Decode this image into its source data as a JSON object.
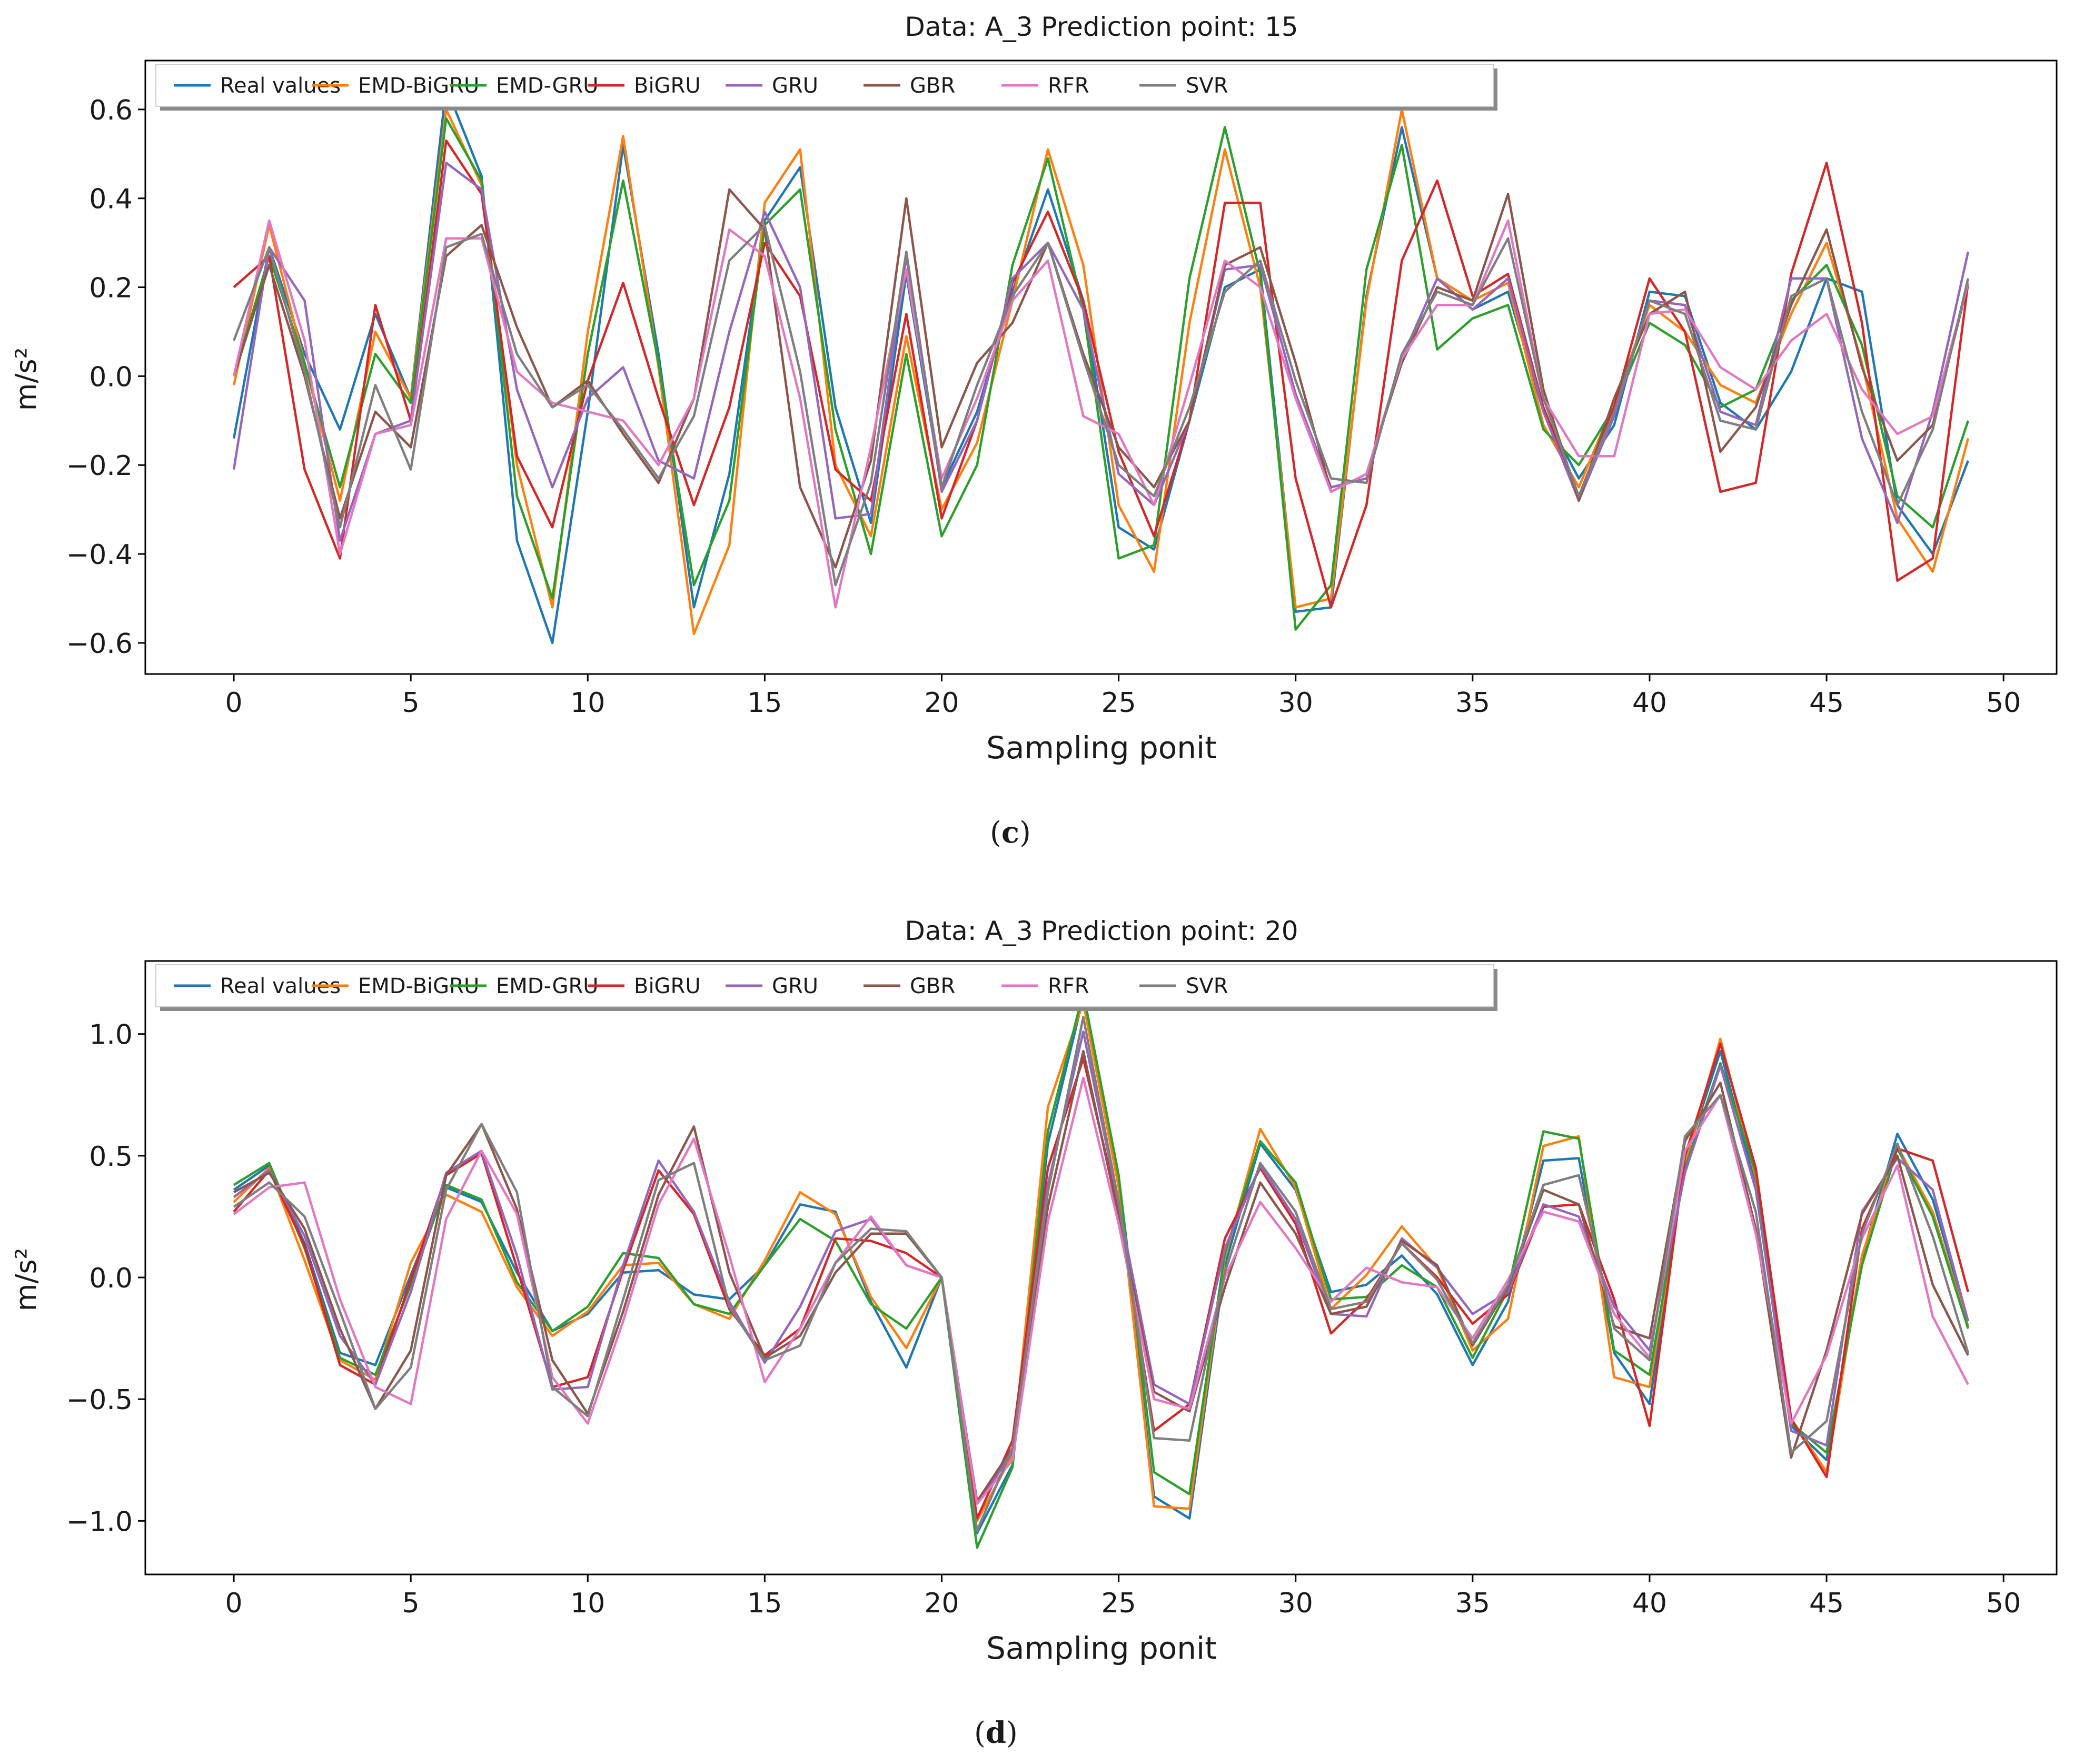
{
  "chart_data": [
    {
      "type": "line",
      "title": "Data: A_3 Prediction point: 15",
      "xlabel": "Sampling ponit",
      "ylabel": "m/s²",
      "caption_letter": "c",
      "xlim": [
        -2.5,
        51.5
      ],
      "ylim": [
        -0.67,
        0.71
      ],
      "xticks": [
        0,
        5,
        10,
        15,
        20,
        25,
        30,
        35,
        40,
        45,
        50
      ],
      "xtick_labels": [
        "0",
        "5",
        "10",
        "15",
        "20",
        "25",
        "30",
        "35",
        "40",
        "45",
        "50"
      ],
      "yticks": [
        -0.6,
        -0.4,
        -0.2,
        0.0,
        0.2,
        0.4,
        0.6
      ],
      "ytick_labels": [
        "−0.6",
        "−0.4",
        "−0.2",
        "0.0",
        "0.2",
        "0.4",
        "0.6"
      ],
      "legend_position": "top-left",
      "x": [
        0,
        1,
        2,
        3,
        4,
        5,
        6,
        7,
        8,
        9,
        10,
        11,
        12,
        13,
        14,
        15,
        16,
        17,
        18,
        19,
        20,
        21,
        22,
        23,
        24,
        25,
        26,
        27,
        28,
        29,
        30,
        31,
        32,
        33,
        34,
        35,
        36,
        37,
        38,
        39,
        40,
        41,
        42,
        43,
        44,
        45,
        46,
        47,
        48,
        49
      ],
      "series": [
        {
          "name": "Real values",
          "color": "#1f77b4",
          "values": [
            -0.14,
            0.29,
            0.05,
            -0.12,
            0.14,
            -0.05,
            0.65,
            0.45,
            -0.37,
            -0.6,
            -0.08,
            0.52,
            0.05,
            -0.52,
            -0.22,
            0.35,
            0.47,
            -0.07,
            -0.33,
            0.23,
            -0.25,
            -0.08,
            0.19,
            0.42,
            0.17,
            -0.34,
            -0.39,
            -0.1,
            0.2,
            0.24,
            -0.53,
            -0.52,
            0.18,
            0.56,
            0.22,
            0.15,
            0.19,
            -0.08,
            -0.23,
            -0.11,
            0.19,
            0.18,
            -0.06,
            -0.12,
            0.01,
            0.22,
            0.19,
            -0.29,
            -0.4,
            -0.19
          ]
        },
        {
          "name": "EMD-BiGRU",
          "color": "#ff7f0e",
          "values": [
            -0.02,
            0.34,
            0.03,
            -0.28,
            0.1,
            -0.05,
            0.6,
            0.43,
            -0.2,
            -0.52,
            0.1,
            0.54,
            0.02,
            -0.58,
            -0.38,
            0.39,
            0.51,
            -0.2,
            -0.36,
            0.09,
            -0.3,
            -0.15,
            0.17,
            0.51,
            0.25,
            -0.29,
            -0.44,
            0.12,
            0.51,
            0.2,
            -0.52,
            -0.5,
            0.17,
            0.6,
            0.22,
            0.17,
            0.21,
            -0.11,
            -0.25,
            -0.06,
            0.16,
            0.1,
            -0.02,
            -0.06,
            0.14,
            0.3,
            0.03,
            -0.32,
            -0.44,
            -0.14
          ]
        },
        {
          "name": "EMD-GRU",
          "color": "#2ca02c",
          "values": [
            0.0,
            0.27,
            0.03,
            -0.25,
            0.05,
            -0.06,
            0.58,
            0.44,
            -0.27,
            -0.5,
            0.05,
            0.44,
            0.03,
            -0.47,
            -0.28,
            0.34,
            0.42,
            -0.12,
            -0.4,
            0.05,
            -0.36,
            -0.2,
            0.25,
            0.49,
            0.15,
            -0.41,
            -0.38,
            0.22,
            0.56,
            0.23,
            -0.57,
            -0.47,
            0.24,
            0.52,
            0.06,
            0.13,
            0.16,
            -0.12,
            -0.2,
            -0.07,
            0.12,
            0.07,
            -0.07,
            -0.03,
            0.17,
            0.25,
            0.07,
            -0.27,
            -0.34,
            -0.1
          ]
        },
        {
          "name": "BiGRU",
          "color": "#d62728",
          "values": [
            0.2,
            0.27,
            -0.21,
            -0.41,
            0.16,
            -0.1,
            0.53,
            0.41,
            -0.18,
            -0.34,
            -0.01,
            0.21,
            -0.05,
            -0.29,
            -0.07,
            0.3,
            0.18,
            -0.21,
            -0.28,
            0.14,
            -0.32,
            -0.1,
            0.21,
            0.37,
            0.17,
            -0.17,
            -0.36,
            -0.1,
            0.39,
            0.39,
            -0.23,
            -0.52,
            -0.29,
            0.26,
            0.44,
            0.18,
            0.23,
            -0.07,
            -0.27,
            -0.07,
            0.22,
            0.1,
            -0.26,
            -0.24,
            0.23,
            0.48,
            0.12,
            -0.46,
            -0.41,
            0.21
          ]
        },
        {
          "name": "GRU",
          "color": "#9467bd",
          "values": [
            -0.21,
            0.29,
            0.17,
            -0.37,
            -0.13,
            -0.1,
            0.48,
            0.42,
            -0.03,
            -0.25,
            -0.05,
            0.02,
            -0.19,
            -0.23,
            0.1,
            0.37,
            0.2,
            -0.32,
            -0.31,
            0.27,
            -0.26,
            -0.1,
            0.22,
            0.3,
            0.15,
            -0.22,
            -0.29,
            -0.1,
            0.24,
            0.25,
            -0.04,
            -0.25,
            -0.23,
            0.04,
            0.22,
            0.15,
            0.22,
            -0.08,
            -0.28,
            -0.09,
            0.17,
            0.16,
            -0.08,
            -0.11,
            0.22,
            0.22,
            -0.14,
            -0.33,
            -0.08,
            0.28
          ]
        },
        {
          "name": "GBR",
          "color": "#8c564b",
          "values": [
            0.0,
            0.25,
            0.0,
            -0.32,
            -0.08,
            -0.16,
            0.27,
            0.34,
            0.11,
            -0.07,
            -0.01,
            -0.13,
            -0.24,
            -0.05,
            0.42,
            0.33,
            -0.25,
            -0.43,
            -0.19,
            0.4,
            -0.16,
            0.03,
            0.12,
            0.3,
            0.05,
            -0.16,
            -0.25,
            -0.1,
            0.25,
            0.29,
            0.03,
            -0.26,
            -0.22,
            0.03,
            0.2,
            0.17,
            0.41,
            -0.03,
            -0.28,
            -0.05,
            0.14,
            0.19,
            -0.17,
            -0.07,
            0.16,
            0.33,
            0.02,
            -0.19,
            -0.11,
            0.21
          ]
        },
        {
          "name": "RFR",
          "color": "#e377c2",
          "values": [
            0.0,
            0.35,
            0.08,
            -0.4,
            -0.13,
            -0.11,
            0.31,
            0.31,
            0.01,
            -0.06,
            -0.08,
            -0.1,
            -0.2,
            -0.05,
            0.33,
            0.27,
            -0.05,
            -0.52,
            -0.16,
            0.24,
            -0.23,
            -0.05,
            0.17,
            0.26,
            -0.09,
            -0.13,
            -0.29,
            -0.02,
            0.26,
            0.2,
            -0.05,
            -0.26,
            -0.22,
            0.04,
            0.16,
            0.16,
            0.35,
            -0.05,
            -0.18,
            -0.18,
            0.14,
            0.15,
            0.02,
            -0.03,
            0.08,
            0.14,
            -0.03,
            -0.13,
            -0.09,
            0.21
          ]
        },
        {
          "name": "SVR",
          "color": "#7f7f7f",
          "values": [
            0.08,
            0.29,
            0.01,
            -0.34,
            -0.02,
            -0.21,
            0.29,
            0.32,
            0.05,
            -0.07,
            -0.02,
            -0.12,
            -0.23,
            -0.09,
            0.26,
            0.34,
            0.01,
            -0.47,
            -0.24,
            0.28,
            -0.25,
            -0.02,
            0.18,
            0.3,
            0.04,
            -0.2,
            -0.27,
            -0.07,
            0.19,
            0.26,
            -0.01,
            -0.23,
            -0.24,
            0.05,
            0.19,
            0.16,
            0.31,
            -0.05,
            -0.27,
            -0.08,
            0.17,
            0.14,
            -0.1,
            -0.12,
            0.18,
            0.22,
            -0.08,
            -0.29,
            -0.12,
            0.22
          ]
        }
      ]
    },
    {
      "type": "line",
      "title": "Data: A_3 Prediction point: 20",
      "xlabel": "Sampling ponit",
      "ylabel": "m/s²",
      "caption_letter": "d",
      "xlim": [
        -2.5,
        51.5
      ],
      "ylim": [
        -1.22,
        1.3
      ],
      "xticks": [
        0,
        5,
        10,
        15,
        20,
        25,
        30,
        35,
        40,
        45,
        50
      ],
      "xtick_labels": [
        "0",
        "5",
        "10",
        "15",
        "20",
        "25",
        "30",
        "35",
        "40",
        "45",
        "50"
      ],
      "yticks": [
        -1.0,
        -0.5,
        0.0,
        0.5,
        1.0
      ],
      "ytick_labels": [
        "−1.0",
        "−0.5",
        "0.0",
        "0.5",
        "1.0"
      ],
      "legend_position": "top-left",
      "x": [
        0,
        1,
        2,
        3,
        4,
        5,
        6,
        7,
        8,
        9,
        10,
        11,
        12,
        13,
        14,
        15,
        16,
        17,
        18,
        19,
        20,
        21,
        22,
        23,
        24,
        25,
        26,
        27,
        28,
        29,
        30,
        31,
        32,
        33,
        34,
        35,
        36,
        37,
        38,
        39,
        40,
        41,
        42,
        43,
        44,
        45,
        46,
        47,
        48,
        49
      ],
      "series": [
        {
          "name": "Real values",
          "color": "#1f77b4",
          "values": [
            0.36,
            0.46,
            0.14,
            -0.31,
            -0.36,
            0.01,
            0.37,
            0.31,
            0.02,
            -0.22,
            -0.15,
            0.02,
            0.03,
            -0.07,
            -0.09,
            0.05,
            0.3,
            0.27,
            -0.1,
            -0.37,
            0.0,
            -1.05,
            -0.77,
            0.55,
            1.15,
            0.38,
            -0.9,
            -0.99,
            0.05,
            0.55,
            0.36,
            -0.06,
            -0.03,
            0.09,
            -0.07,
            -0.36,
            -0.1,
            0.48,
            0.49,
            -0.31,
            -0.52,
            0.48,
            0.93,
            0.38,
            -0.61,
            -0.75,
            0.08,
            0.59,
            0.32,
            -0.18
          ]
        },
        {
          "name": "EMD-BiGRU",
          "color": "#ff7f0e",
          "values": [
            0.31,
            0.45,
            0.07,
            -0.34,
            -0.42,
            0.06,
            0.34,
            0.27,
            -0.04,
            -0.24,
            -0.14,
            0.05,
            0.06,
            -0.11,
            -0.17,
            0.07,
            0.35,
            0.26,
            -0.08,
            -0.29,
            0.0,
            -1.0,
            -0.73,
            0.7,
            1.13,
            0.37,
            -0.94,
            -0.95,
            0.08,
            0.61,
            0.37,
            -0.13,
            0.01,
            0.21,
            0.04,
            -0.3,
            -0.17,
            0.54,
            0.58,
            -0.41,
            -0.45,
            0.47,
            0.98,
            0.41,
            -0.58,
            -0.8,
            0.09,
            0.54,
            0.27,
            -0.2
          ]
        },
        {
          "name": "EMD-GRU",
          "color": "#2ca02c",
          "values": [
            0.38,
            0.47,
            0.12,
            -0.33,
            -0.4,
            -0.03,
            0.38,
            0.32,
            -0.02,
            -0.22,
            -0.12,
            0.1,
            0.08,
            -0.11,
            -0.15,
            0.05,
            0.24,
            0.15,
            -0.11,
            -0.21,
            0.0,
            -1.11,
            -0.78,
            0.6,
            1.17,
            0.42,
            -0.8,
            -0.89,
            0.1,
            0.56,
            0.39,
            -0.09,
            -0.08,
            0.05,
            -0.04,
            -0.33,
            -0.05,
            0.6,
            0.57,
            -0.3,
            -0.4,
            0.45,
            0.88,
            0.43,
            -0.6,
            -0.72,
            0.05,
            0.53,
            0.25,
            -0.21
          ]
        },
        {
          "name": "BiGRU",
          "color": "#d62728",
          "values": [
            0.27,
            0.44,
            0.13,
            -0.36,
            -0.44,
            -0.01,
            0.42,
            0.51,
            0.04,
            -0.45,
            -0.41,
            0.03,
            0.44,
            0.26,
            -0.13,
            -0.32,
            -0.21,
            0.16,
            0.15,
            0.1,
            0.0,
            -0.99,
            -0.67,
            0.45,
            0.9,
            0.28,
            -0.63,
            -0.52,
            0.16,
            0.45,
            0.22,
            -0.23,
            -0.09,
            0.14,
            0.0,
            -0.19,
            -0.07,
            0.29,
            0.3,
            -0.09,
            -0.61,
            0.5,
            0.96,
            0.45,
            -0.58,
            -0.82,
            0.2,
            0.53,
            0.48,
            -0.06
          ]
        },
        {
          "name": "GRU",
          "color": "#9467bd",
          "values": [
            0.33,
            0.44,
            0.17,
            -0.24,
            -0.44,
            -0.06,
            0.43,
            0.52,
            0.09,
            -0.46,
            -0.45,
            0.05,
            0.48,
            0.27,
            -0.1,
            -0.35,
            -0.12,
            0.19,
            0.24,
            0.05,
            0.0,
            -0.93,
            -0.72,
            0.38,
            1.01,
            0.3,
            -0.44,
            -0.52,
            0.12,
            0.46,
            0.24,
            -0.15,
            -0.16,
            0.16,
            0.04,
            -0.15,
            -0.06,
            0.3,
            0.25,
            -0.12,
            -0.3,
            0.43,
            0.87,
            0.36,
            -0.63,
            -0.69,
            0.27,
            0.49,
            0.36,
            -0.18
          ]
        },
        {
          "name": "GBR",
          "color": "#8c564b",
          "values": [
            0.35,
            0.43,
            0.2,
            -0.21,
            -0.54,
            -0.3,
            0.42,
            0.63,
            0.28,
            -0.34,
            -0.56,
            -0.14,
            0.34,
            0.62,
            0.02,
            -0.33,
            -0.24,
            0.02,
            0.18,
            0.18,
            0.0,
            -0.92,
            -0.7,
            0.29,
            0.93,
            0.25,
            -0.47,
            -0.55,
            -0.04,
            0.39,
            0.18,
            -0.15,
            -0.12,
            0.15,
            0.05,
            -0.28,
            -0.04,
            0.36,
            0.3,
            -0.2,
            -0.25,
            0.56,
            0.8,
            0.2,
            -0.74,
            -0.3,
            0.26,
            0.5,
            -0.03,
            -0.32
          ]
        },
        {
          "name": "RFR",
          "color": "#e377c2",
          "values": [
            0.26,
            0.37,
            0.39,
            -0.09,
            -0.45,
            -0.52,
            0.24,
            0.52,
            0.26,
            -0.41,
            -0.6,
            -0.18,
            0.3,
            0.57,
            0.09,
            -0.43,
            -0.21,
            0.06,
            0.25,
            0.05,
            0.0,
            -0.93,
            -0.75,
            0.23,
            0.82,
            0.22,
            -0.5,
            -0.54,
            0.0,
            0.31,
            0.12,
            -0.1,
            0.04,
            -0.02,
            -0.04,
            -0.25,
            -0.01,
            0.27,
            0.23,
            -0.15,
            -0.33,
            0.52,
            0.75,
            0.18,
            -0.6,
            -0.32,
            0.16,
            0.46,
            -0.16,
            -0.44
          ]
        },
        {
          "name": "SVR",
          "color": "#7f7f7f",
          "values": [
            0.29,
            0.39,
            0.25,
            -0.14,
            -0.54,
            -0.37,
            0.36,
            0.63,
            0.35,
            -0.45,
            -0.57,
            -0.09,
            0.4,
            0.47,
            -0.12,
            -0.34,
            -0.28,
            0.06,
            0.2,
            0.19,
            0.0,
            -1.04,
            -0.7,
            0.35,
            1.07,
            0.31,
            -0.66,
            -0.67,
            0.02,
            0.47,
            0.27,
            -0.13,
            -0.1,
            0.14,
            -0.01,
            -0.27,
            -0.03,
            0.38,
            0.42,
            -0.21,
            -0.34,
            0.58,
            0.75,
            0.27,
            -0.72,
            -0.59,
            0.18,
            0.55,
            0.17,
            -0.31
          ]
        }
      ]
    }
  ]
}
